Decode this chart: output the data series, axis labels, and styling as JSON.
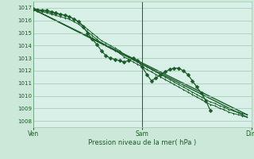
{
  "title": "",
  "xlabel": "Pression niveau de la mer( hPa )",
  "bg_color": "#cce8d8",
  "plot_bg_color": "#d8f0e8",
  "grid_color": "#a0c8b0",
  "line_color": "#1a5c28",
  "dark_line_color": "#1a5c28",
  "xlim": [
    0,
    48
  ],
  "ylim": [
    1007.5,
    1017.5
  ],
  "yticks": [
    1008,
    1009,
    1010,
    1011,
    1012,
    1013,
    1014,
    1015,
    1016,
    1017
  ],
  "xtick_positions": [
    0,
    24,
    48
  ],
  "xtick_labels": [
    "Ven",
    "Sam",
    "Dim"
  ],
  "x_full": 48,
  "x_obs": 40,
  "series_line1": [
    1016.8,
    1016.8,
    1016.7,
    1016.6,
    1016.5,
    1016.4,
    1016.3,
    1016.2,
    1016.1,
    1015.9,
    1015.7,
    1015.4,
    1015.1,
    1014.8,
    1014.5,
    1014.2,
    1014.0,
    1013.8,
    1013.6,
    1013.4,
    1013.1,
    1012.9,
    1012.7,
    1012.5,
    1012.3,
    1012.1,
    1011.9,
    1011.7,
    1011.5,
    1011.3,
    1011.1,
    1010.9,
    1010.7,
    1010.5,
    1010.3,
    1010.1,
    1009.9,
    1009.7,
    1009.5,
    1009.3,
    1009.2,
    1009.0,
    1008.9,
    1008.7,
    1008.6,
    1008.5,
    1008.4,
    1008.3
  ],
  "series_line2": [
    1016.9,
    1016.9,
    1016.8,
    1016.7,
    1016.6,
    1016.5,
    1016.5,
    1016.4,
    1016.3,
    1016.1,
    1015.9,
    1015.6,
    1015.3,
    1015.0,
    1014.7,
    1014.4,
    1014.2,
    1014.0,
    1013.8,
    1013.6,
    1013.3,
    1013.1,
    1012.9,
    1012.7,
    1012.5,
    1012.3,
    1012.1,
    1011.9,
    1011.7,
    1011.5,
    1011.3,
    1011.1,
    1010.9,
    1010.7,
    1010.5,
    1010.3,
    1010.1,
    1009.9,
    1009.7,
    1009.5,
    1009.4,
    1009.2,
    1009.1,
    1008.9,
    1008.8,
    1008.7,
    1008.6,
    1008.5
  ],
  "series_observed": [
    1016.9,
    1016.8,
    1016.8,
    1016.8,
    1016.7,
    1016.6,
    1016.5,
    1016.4,
    1016.3,
    1016.1,
    1015.9,
    1015.5,
    1015.0,
    1014.5,
    1014.1,
    1013.6,
    1013.2,
    1013.0,
    1012.9,
    1012.8,
    1012.7,
    1012.8,
    1013.0,
    1012.8,
    1012.3,
    1011.7,
    1011.2,
    1011.4,
    1011.7,
    1011.9,
    1012.1,
    1012.2,
    1012.2,
    1012.0,
    1011.7,
    1011.2,
    1010.7,
    1010.2,
    1009.6,
    1008.8
  ],
  "trend1_x": [
    0,
    47
  ],
  "trend1_y": [
    1016.9,
    1008.3
  ],
  "trend2_x": [
    0,
    47
  ],
  "trend2_y": [
    1016.9,
    1008.5
  ],
  "lw_envelope": 0.7,
  "lw_trend": 1.0,
  "lw_observed": 0.9,
  "marker_size_envelope": 2.0,
  "marker_size_observed": 2.5
}
